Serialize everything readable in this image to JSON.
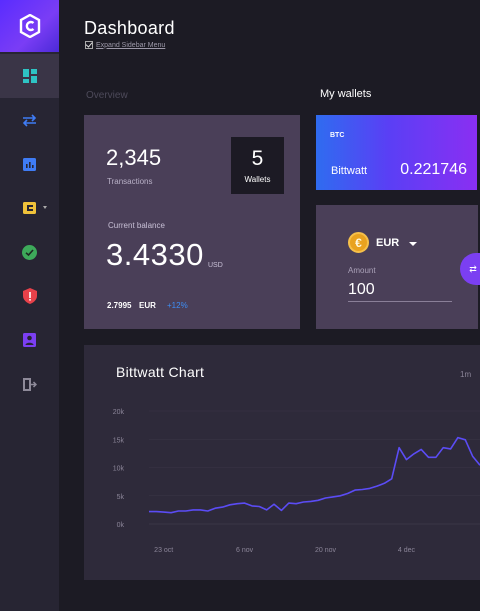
{
  "header": {
    "title": "Dashboard",
    "expand_label": "Expand Sidebar Menu"
  },
  "sidebar": {
    "items": [
      {
        "name": "dashboard",
        "icon": "dashboard-grid-icon",
        "active": true
      },
      {
        "name": "transfer",
        "icon": "transfer-arrows-icon"
      },
      {
        "name": "statistics",
        "icon": "bar-chart-icon"
      },
      {
        "name": "wallets",
        "icon": "wallet-icon"
      },
      {
        "name": "verified",
        "icon": "check-circle-icon"
      },
      {
        "name": "security",
        "icon": "shield-alert-icon"
      },
      {
        "name": "profile",
        "icon": "user-card-icon"
      },
      {
        "name": "logout",
        "icon": "logout-icon"
      }
    ]
  },
  "overview": {
    "section_label": "Overview",
    "transactions_count": "2,345",
    "transactions_label": "Transactions",
    "wallets_count": "5",
    "wallets_label": "Wallets",
    "balance_label": "Current balance",
    "balance_value": "3.4330",
    "balance_unit": "USD",
    "balance_eur_value": "2.7995",
    "balance_eur_unit": "EUR",
    "balance_change": "+12%"
  },
  "wallets": {
    "section_label": "My wallets",
    "btc": {
      "code": "BTC",
      "name": "Bittwatt",
      "amount": "0.221746"
    },
    "eur": {
      "code": "EUR",
      "amount_label": "Amount",
      "amount_value": "100",
      "coin_symbol": "€"
    }
  },
  "chart_card": {
    "title": "Bittwatt Chart",
    "range_1": "1m",
    "range_2": ""
  },
  "colors": {
    "accent": "#7b3ff2",
    "line": "#5b4cf5",
    "card": "#4a3f58",
    "bg": "#1c1b24"
  },
  "chart_data": {
    "type": "line",
    "title": "Bittwatt Chart",
    "xlabel": "",
    "ylabel": "",
    "ylim": [
      0,
      20000
    ],
    "y_ticks": [
      "0k",
      "5k",
      "10k",
      "15k",
      "20k"
    ],
    "x_ticks": [
      {
        "label": "23 oct",
        "index": 2
      },
      {
        "label": "6 nov",
        "index": 13
      },
      {
        "label": "20 nov",
        "index": 24
      },
      {
        "label": "4 dec",
        "index": 35
      }
    ],
    "series": [
      {
        "values": [
          2200,
          2200,
          2100,
          2000,
          2300,
          2300,
          2500,
          2500,
          2300,
          2800,
          3000,
          3400,
          3600,
          3700,
          3200,
          3100,
          2500,
          3500,
          2400,
          3700,
          3600,
          3900,
          4000,
          4200,
          4600,
          4800,
          5000,
          5400,
          6000,
          6100,
          6300,
          6700,
          7200,
          8000,
          13500,
          11400,
          12400,
          13200,
          11800,
          11800,
          13500,
          13300,
          15300,
          14900,
          12000,
          10400
        ]
      }
    ]
  }
}
